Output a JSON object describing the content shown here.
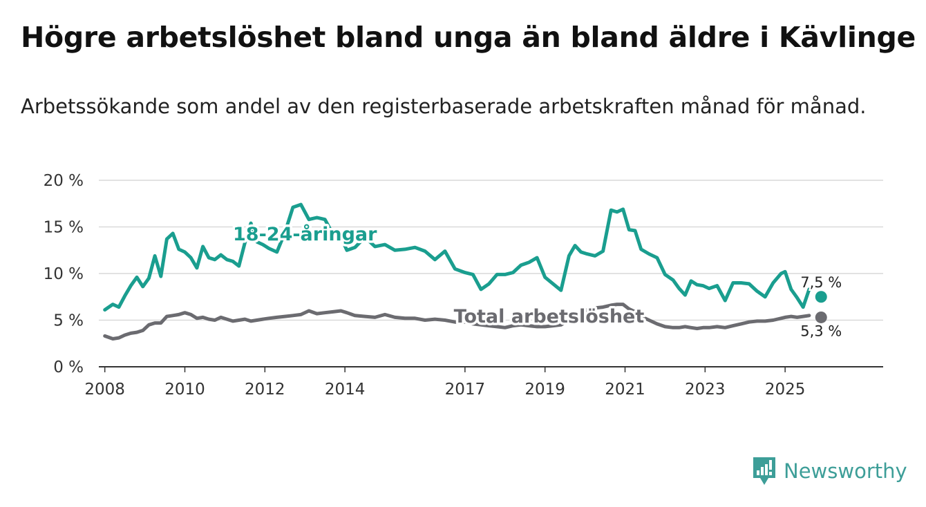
{
  "title": "Högre arbetslöshet bland unga än bland äldre i Kävlinge",
  "subtitle": "Arbetssökande som andel av den registerbaserade arbetskraften månad för månad.",
  "brand": "Newsworthy",
  "colors": {
    "youth": "#1a9e8f",
    "total": "#6b6b70",
    "grid": "#d9d9d9",
    "axis": "#333333",
    "brand": "#3d9e98"
  },
  "chart_data": {
    "type": "line",
    "title": "Högre arbetslöshet bland unga än bland äldre i Kävlinge",
    "xlabel": "",
    "ylabel": "",
    "xlim": [
      2007.85,
      2027.45
    ],
    "ylim": [
      0,
      20
    ],
    "grid": true,
    "x_ticks": [
      {
        "value": 2008,
        "label": "2008"
      },
      {
        "value": 2010,
        "label": "2010"
      },
      {
        "value": 2012,
        "label": "2012"
      },
      {
        "value": 2014,
        "label": "2014"
      },
      {
        "value": 2017,
        "label": "2017"
      },
      {
        "value": 2019,
        "label": "2019"
      },
      {
        "value": 2021,
        "label": "2021"
      },
      {
        "value": 2023,
        "label": "2023"
      },
      {
        "value": 2025,
        "label": "2025"
      }
    ],
    "y_ticks": [
      {
        "value": 0,
        "label": "0 %"
      },
      {
        "value": 5,
        "label": "5 %"
      },
      {
        "value": 10,
        "label": "10 %"
      },
      {
        "value": 15,
        "label": "15 %"
      },
      {
        "value": 20,
        "label": "20 %"
      }
    ],
    "series": [
      {
        "name": "18-24-åringar",
        "label": "18-24-åringar",
        "label_anchor": [
          2013.0,
          14.3
        ],
        "end_label": "7,5 %",
        "end_point": [
          2025.9,
          7.5
        ],
        "x": [
          2008.0,
          2008.2,
          2008.35,
          2008.5,
          2008.65,
          2008.8,
          2008.95,
          2009.1,
          2009.25,
          2009.4,
          2009.55,
          2009.7,
          2009.85,
          2010.0,
          2010.15,
          2010.3,
          2010.45,
          2010.6,
          2010.75,
          2010.9,
          2011.05,
          2011.2,
          2011.35,
          2011.5,
          2011.65,
          2011.8,
          2011.95,
          2012.1,
          2012.3,
          2012.5,
          2012.7,
          2012.9,
          2013.1,
          2013.3,
          2013.5,
          2013.7,
          2013.9,
          2014.05,
          2014.25,
          2014.5,
          2014.75,
          2015.0,
          2015.25,
          2015.5,
          2015.75,
          2016.0,
          2016.25,
          2016.5,
          2016.75,
          2017.0,
          2017.2,
          2017.4,
          2017.6,
          2017.8,
          2018.0,
          2018.2,
          2018.4,
          2018.6,
          2018.8,
          2019.0,
          2019.2,
          2019.4,
          2019.6,
          2019.75,
          2019.9,
          2020.05,
          2020.25,
          2020.45,
          2020.65,
          2020.8,
          2020.95,
          2021.1,
          2021.25,
          2021.4,
          2021.6,
          2021.8,
          2022.0,
          2022.2,
          2022.35,
          2022.5,
          2022.65,
          2022.8,
          2022.95,
          2023.1,
          2023.3,
          2023.5,
          2023.7,
          2023.9,
          2024.1,
          2024.3,
          2024.5,
          2024.7,
          2024.9,
          2025.0,
          2025.15,
          2025.3,
          2025.45,
          2025.6
        ],
        "values": [
          6.1,
          6.7,
          6.4,
          7.6,
          8.7,
          9.6,
          8.6,
          9.5,
          11.9,
          9.7,
          13.7,
          14.3,
          12.6,
          12.3,
          11.7,
          10.6,
          12.9,
          11.7,
          11.5,
          12.0,
          11.5,
          11.3,
          10.8,
          13.3,
          15.4,
          13.4,
          13.1,
          12.7,
          12.3,
          14.4,
          17.1,
          17.4,
          15.8,
          16.0,
          15.8,
          14.2,
          13.9,
          12.5,
          12.8,
          13.9,
          12.9,
          13.1,
          12.5,
          12.6,
          12.8,
          12.4,
          11.5,
          12.4,
          10.5,
          10.1,
          9.9,
          8.3,
          8.9,
          9.9,
          9.9,
          10.1,
          10.9,
          11.2,
          11.7,
          9.6,
          8.9,
          8.2,
          11.9,
          13.0,
          12.3,
          12.1,
          11.9,
          12.4,
          16.8,
          16.6,
          16.9,
          14.7,
          14.6,
          12.6,
          12.1,
          11.7,
          9.9,
          9.3,
          8.4,
          7.7,
          9.2,
          8.8,
          8.7,
          8.4,
          8.7,
          7.1,
          9.0,
          9.0,
          8.9,
          8.1,
          7.5,
          9.0,
          10.0,
          10.2,
          8.3,
          7.4,
          6.4,
          8.3
        ]
      },
      {
        "name": "Total arbetslöshet",
        "label": "Total arbetslöshet",
        "label_anchor": [
          2019.1,
          5.5
        ],
        "end_label": "5,3 %",
        "end_point": [
          2025.9,
          5.3
        ],
        "x": [
          2008.0,
          2008.2,
          2008.35,
          2008.5,
          2008.65,
          2008.8,
          2008.95,
          2009.1,
          2009.25,
          2009.4,
          2009.55,
          2009.7,
          2009.85,
          2010.0,
          2010.15,
          2010.3,
          2010.45,
          2010.6,
          2010.75,
          2010.9,
          2011.05,
          2011.2,
          2011.35,
          2011.5,
          2011.65,
          2011.8,
          2011.95,
          2012.1,
          2012.3,
          2012.5,
          2012.7,
          2012.9,
          2013.1,
          2013.3,
          2013.5,
          2013.7,
          2013.9,
          2014.05,
          2014.25,
          2014.5,
          2014.75,
          2015.0,
          2015.25,
          2015.5,
          2015.75,
          2016.0,
          2016.25,
          2016.5,
          2016.75,
          2017.0,
          2017.2,
          2017.4,
          2017.6,
          2017.8,
          2018.0,
          2018.2,
          2018.4,
          2018.6,
          2018.8,
          2019.0,
          2019.2,
          2019.4,
          2019.6,
          2019.75,
          2019.9,
          2020.05,
          2020.25,
          2020.45,
          2020.65,
          2020.8,
          2020.95,
          2021.1,
          2021.25,
          2021.4,
          2021.6,
          2021.8,
          2022.0,
          2022.2,
          2022.35,
          2022.5,
          2022.65,
          2022.8,
          2022.95,
          2023.1,
          2023.3,
          2023.5,
          2023.7,
          2023.9,
          2024.1,
          2024.3,
          2024.5,
          2024.7,
          2024.9,
          2025.0,
          2025.15,
          2025.3,
          2025.45,
          2025.6
        ],
        "values": [
          3.3,
          3.0,
          3.1,
          3.4,
          3.6,
          3.7,
          3.9,
          4.5,
          4.7,
          4.7,
          5.4,
          5.5,
          5.6,
          5.8,
          5.6,
          5.2,
          5.3,
          5.1,
          5.0,
          5.3,
          5.1,
          4.9,
          5.0,
          5.1,
          4.9,
          5.0,
          5.1,
          5.2,
          5.3,
          5.4,
          5.5,
          5.6,
          6.0,
          5.7,
          5.8,
          5.9,
          6.0,
          5.8,
          5.5,
          5.4,
          5.3,
          5.6,
          5.3,
          5.2,
          5.2,
          5.0,
          5.1,
          5.0,
          4.8,
          4.8,
          4.6,
          4.5,
          4.4,
          4.3,
          4.2,
          4.4,
          4.5,
          4.4,
          4.3,
          4.3,
          4.4,
          4.5,
          5.0,
          5.5,
          5.9,
          6.1,
          6.3,
          6.4,
          6.6,
          6.7,
          6.7,
          6.2,
          5.9,
          5.4,
          5.0,
          4.6,
          4.3,
          4.2,
          4.2,
          4.3,
          4.2,
          4.1,
          4.2,
          4.2,
          4.3,
          4.2,
          4.4,
          4.6,
          4.8,
          4.9,
          4.9,
          5.0,
          5.2,
          5.3,
          5.4,
          5.3,
          5.4,
          5.5
        ]
      }
    ]
  }
}
